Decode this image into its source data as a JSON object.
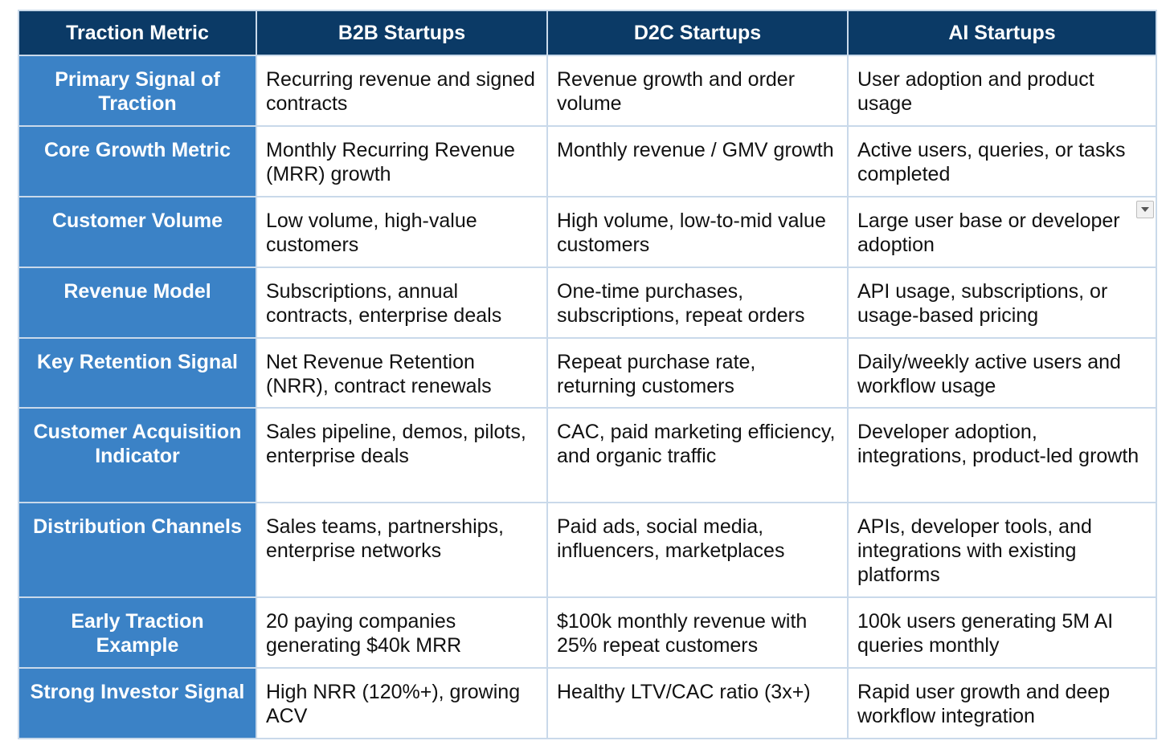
{
  "table": {
    "headers": [
      "Traction Metric",
      "B2B Startups",
      "D2C Startups",
      "AI Startups"
    ],
    "rows": [
      {
        "metric": "Primary Signal of Traction",
        "b2b": "Recurring revenue and signed contracts",
        "d2c": "Revenue growth and order volume",
        "ai": "User adoption and product usage"
      },
      {
        "metric": "Core Growth Metric",
        "b2b": "Monthly Recurring Revenue (MRR) growth",
        "d2c": "Monthly revenue / GMV growth",
        "ai": "Active users, queries, or tasks completed"
      },
      {
        "metric": "Customer Volume",
        "b2b": "Low volume, high-value customers",
        "d2c": "High volume, low-to-mid value customers",
        "ai": "Large user base or developer adoption"
      },
      {
        "metric": "Revenue Model",
        "b2b": "Subscriptions, annual contracts, enterprise deals",
        "d2c": "One-time purchases, subscriptions, repeat orders",
        "ai": "API usage, subscriptions, or usage-based pricing"
      },
      {
        "metric": "Key Retention Signal",
        "b2b": "Net Revenue Retention (NRR), contract renewals",
        "d2c": "Repeat purchase rate, returning customers",
        "ai": "Daily/weekly active users and workflow usage"
      },
      {
        "metric": "Customer Acquisition Indicator",
        "b2b": "Sales pipeline, demos, pilots, enterprise deals",
        "d2c": "CAC, paid marketing efficiency, and organic traffic",
        "ai": "Developer adoption, integrations, product-led growth"
      },
      {
        "metric": "Distribution Channels",
        "b2b": "Sales teams, partnerships, enterprise networks",
        "d2c": "Paid ads, social media, influencers, marketplaces",
        "ai": "APIs, developer tools, and integrations with existing platforms"
      },
      {
        "metric": "Early Traction Example",
        "b2b": "20 paying companies generating $40k MRR",
        "d2c": "$100k monthly revenue with 25% repeat customers",
        "ai": "100k users generating 5M AI queries monthly"
      },
      {
        "metric": "Strong Investor Signal",
        "b2b": "High NRR (120%+), growing ACV",
        "d2c": "Healthy LTV/CAC ratio (3x+)",
        "ai": "Rapid user growth and deep workflow integration"
      }
    ]
  },
  "colors": {
    "header_bg": "#0b3a66",
    "row_header_bg": "#3b82c6",
    "border": "#c9d9ea"
  },
  "icons": {
    "cell_dropdown": "chevron-down-icon"
  }
}
